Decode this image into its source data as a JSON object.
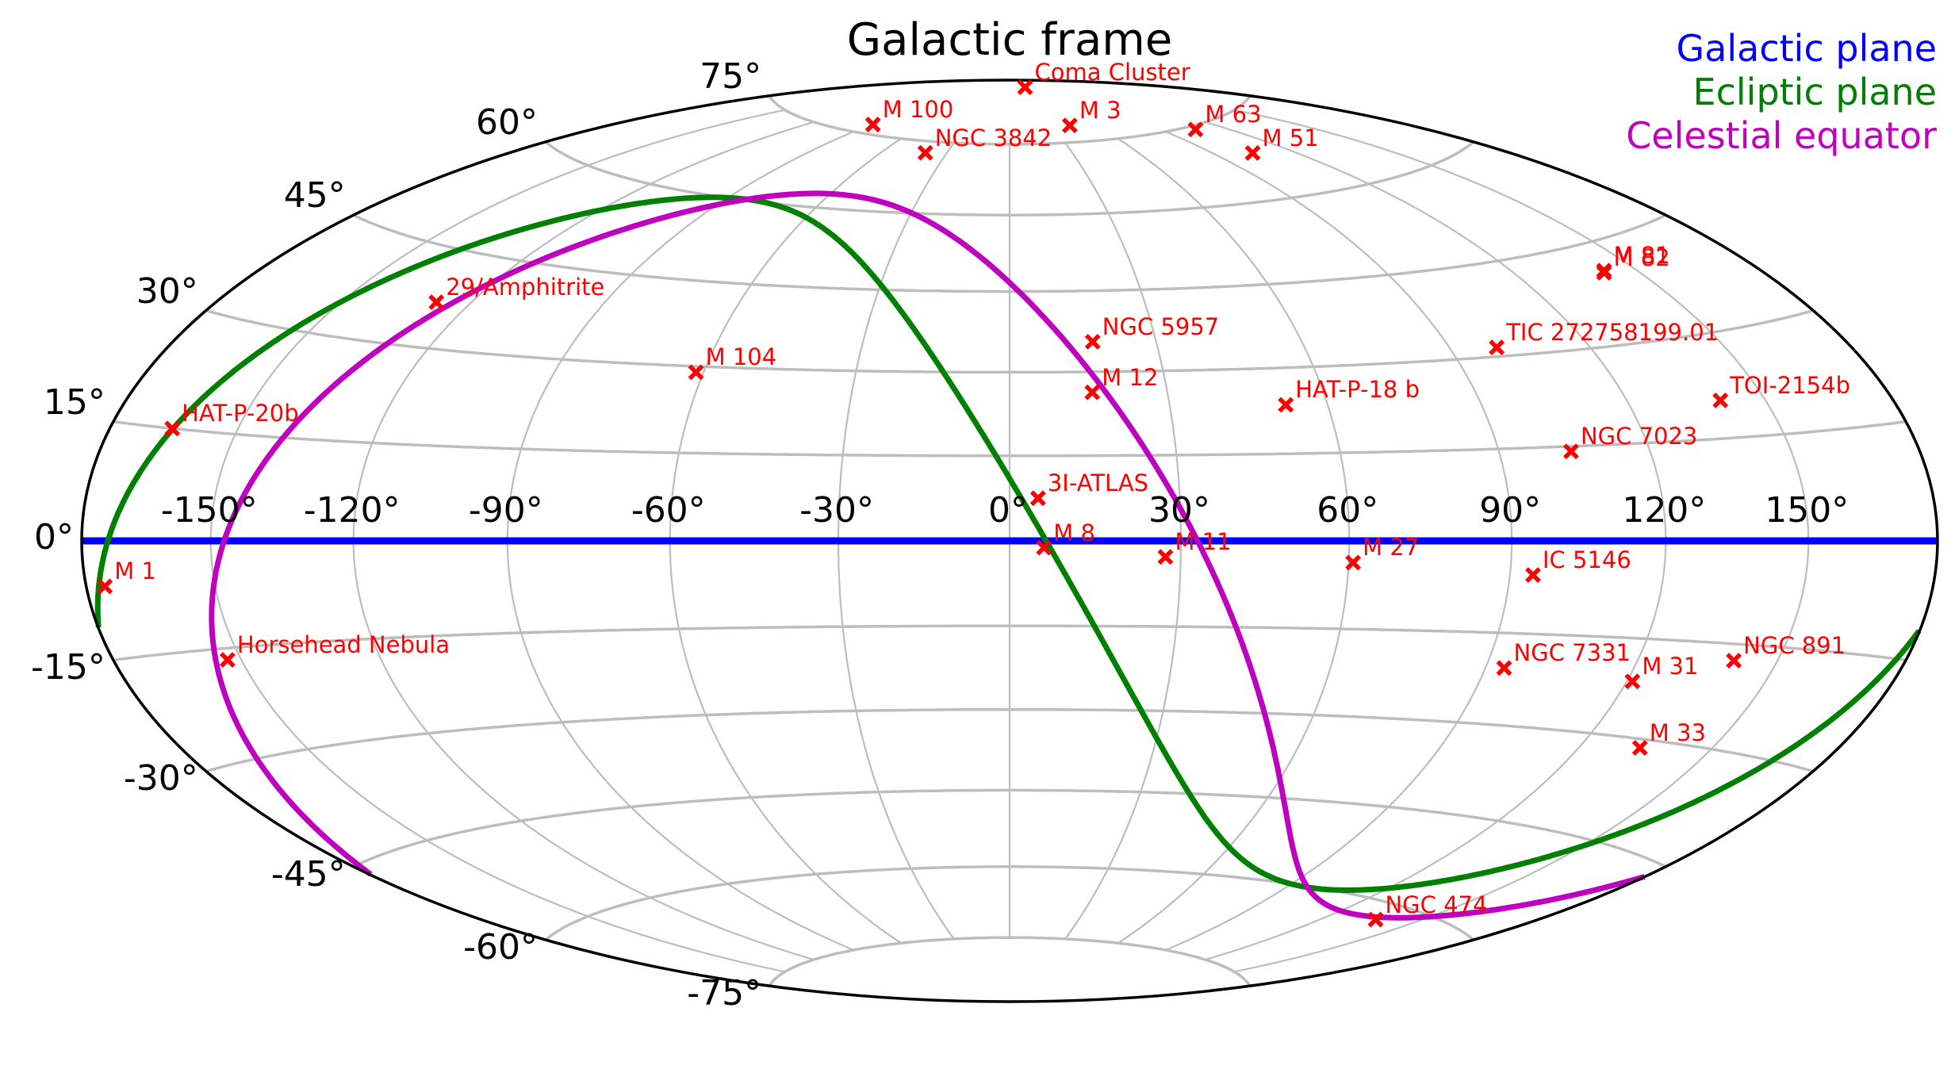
{
  "chart_data": {
    "type": "scatter",
    "projection": "hammer-aitoff",
    "title": "Galactic frame",
    "xlabel": "",
    "ylabel": "",
    "grid": true,
    "x_ticks": [
      "-150°",
      "-120°",
      "-90°",
      "-60°",
      "-30°",
      "0°",
      "30°",
      "60°",
      "90°",
      "120°",
      "150°"
    ],
    "x_tick_values": [
      -150,
      -120,
      -90,
      -60,
      -30,
      0,
      30,
      60,
      90,
      120,
      150
    ],
    "y_ticks": [
      "-75°",
      "-60°",
      "-45°",
      "-30°",
      "-15°",
      "0°",
      "15°",
      "30°",
      "45°",
      "60°",
      "75°"
    ],
    "y_tick_values": [
      -75,
      -60,
      -45,
      -30,
      -15,
      0,
      15,
      30,
      45,
      60,
      75
    ],
    "legend": [
      {
        "label": "Galactic plane",
        "color": "#0000ff"
      },
      {
        "label": "Ecliptic plane",
        "color": "#008000"
      },
      {
        "label": "Celestial equator",
        "color": "#bf00bf"
      }
    ],
    "legend_position": "upper right",
    "lines": [
      {
        "name": "Galactic plane",
        "color": "#0000ff",
        "pole_l": 0,
        "pole_b": 90
      },
      {
        "name": "Ecliptic plane",
        "color": "#008000",
        "pole_l": 96.38,
        "pole_b": 29.81
      },
      {
        "name": "Celestial equator",
        "color": "#bf00bf",
        "pole_l": 122.93,
        "pole_b": 27.13
      }
    ],
    "marker_color": "#ff0000",
    "marker": "x",
    "points": [
      {
        "name": "Coma Cluster",
        "l": 58.1,
        "b": 88.0
      },
      {
        "name": "NGC 3842",
        "l": -40.0,
        "b": 72.5
      },
      {
        "name": "M 100",
        "l": -88.9,
        "b": 76.9
      },
      {
        "name": "M 3",
        "l": 42.2,
        "b": 78.7
      },
      {
        "name": "M 63",
        "l": 105.97,
        "b": 74.3
      },
      {
        "name": "M 51",
        "l": 104.85,
        "b": 68.56
      },
      {
        "name": "29/Amphitrite",
        "l": -128.0,
        "b": 37.0
      },
      {
        "name": "M 104",
        "l": -61.5,
        "b": 28.97
      },
      {
        "name": "NGC 5957",
        "l": 17.0,
        "b": 35.5
      },
      {
        "name": "M 81",
        "l": 142.1,
        "b": 40.9
      },
      {
        "name": "M 82",
        "l": 141.4,
        "b": 40.6
      },
      {
        "name": "TIC 272758199.01",
        "l": 100.0,
        "b": 31.5
      },
      {
        "name": "HAT-P-18 b",
        "l": 52.0,
        "b": 23.5
      },
      {
        "name": "TOI-2154b",
        "l": 140.0,
        "b": 20.5
      },
      {
        "name": "HAT-P-20b",
        "l": -165.0,
        "b": 15.0
      },
      {
        "name": "M 12",
        "l": 15.7,
        "b": 26.3
      },
      {
        "name": "NGC 7023",
        "l": 104.1,
        "b": 14.2
      },
      {
        "name": "3I-ATLAS",
        "l": 5.0,
        "b": 7.5
      },
      {
        "name": "M 8",
        "l": 6.0,
        "b": -1.2
      },
      {
        "name": "M 11",
        "l": 27.3,
        "b": -2.8
      },
      {
        "name": "M 27",
        "l": 60.8,
        "b": -3.7
      },
      {
        "name": "IC 5146",
        "l": 94.4,
        "b": -5.5
      },
      {
        "name": "M 1",
        "l": -175.44,
        "b": -5.78
      },
      {
        "name": "Horsehead Nebula",
        "l": -153.1,
        "b": -16.6
      },
      {
        "name": "NGC 7331",
        "l": 93.7,
        "b": -20.7
      },
      {
        "name": "M 31",
        "l": 121.2,
        "b": -21.6
      },
      {
        "name": "NGC 891",
        "l": 140.4,
        "b": -17.4
      },
      {
        "name": "M 33",
        "l": 133.6,
        "b": -31.3
      },
      {
        "name": "NGC 474",
        "l": 136.8,
        "b": -62.7
      }
    ]
  },
  "title": "Galactic frame",
  "legend": {
    "galactic": "Galactic plane",
    "ecliptic": "Ecliptic plane",
    "equator": "Celestial equator"
  }
}
